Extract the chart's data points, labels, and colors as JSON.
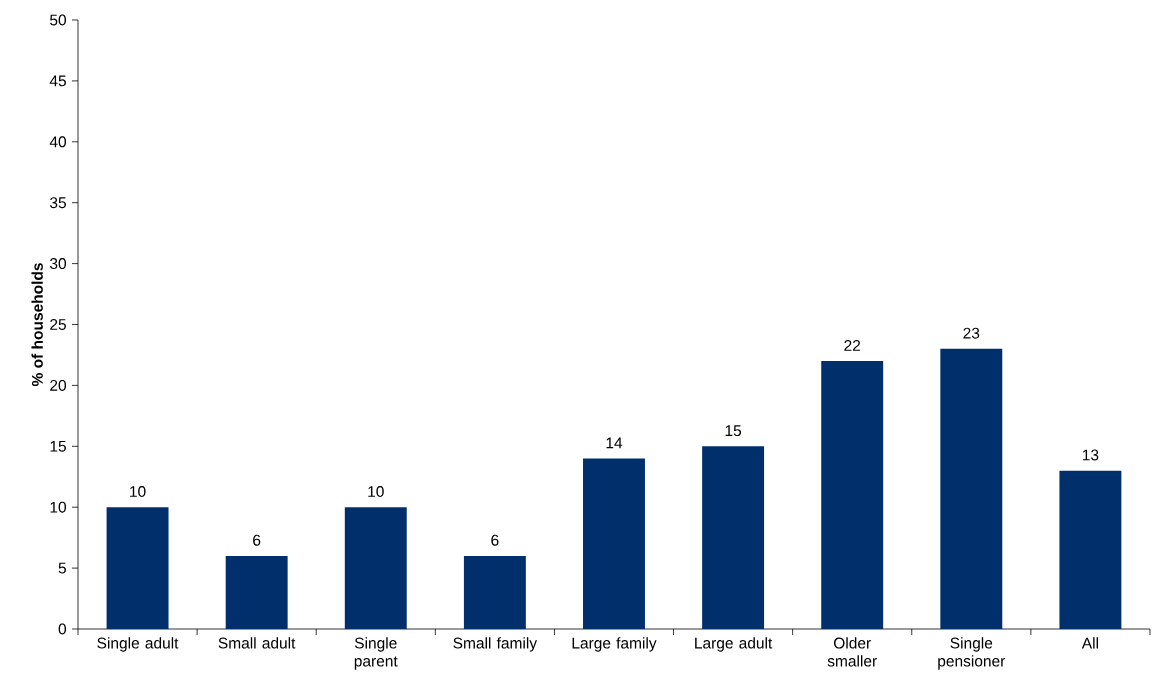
{
  "chart_data": {
    "type": "bar",
    "ylabel": "% of households",
    "categories": [
      "Single adult",
      "Small adult",
      "Single parent",
      "Small family",
      "Large family",
      "Large adult",
      "Older smaller",
      "Single pensioner",
      "All"
    ],
    "values": [
      10,
      6,
      10,
      6,
      14,
      15,
      22,
      23,
      13
    ],
    "color": "#002f6c",
    "ylim": [
      0,
      50
    ],
    "yticks": [
      0,
      5,
      10,
      15,
      20,
      25,
      30,
      35,
      40,
      45,
      50
    ],
    "data_labels": true,
    "grid": false
  }
}
